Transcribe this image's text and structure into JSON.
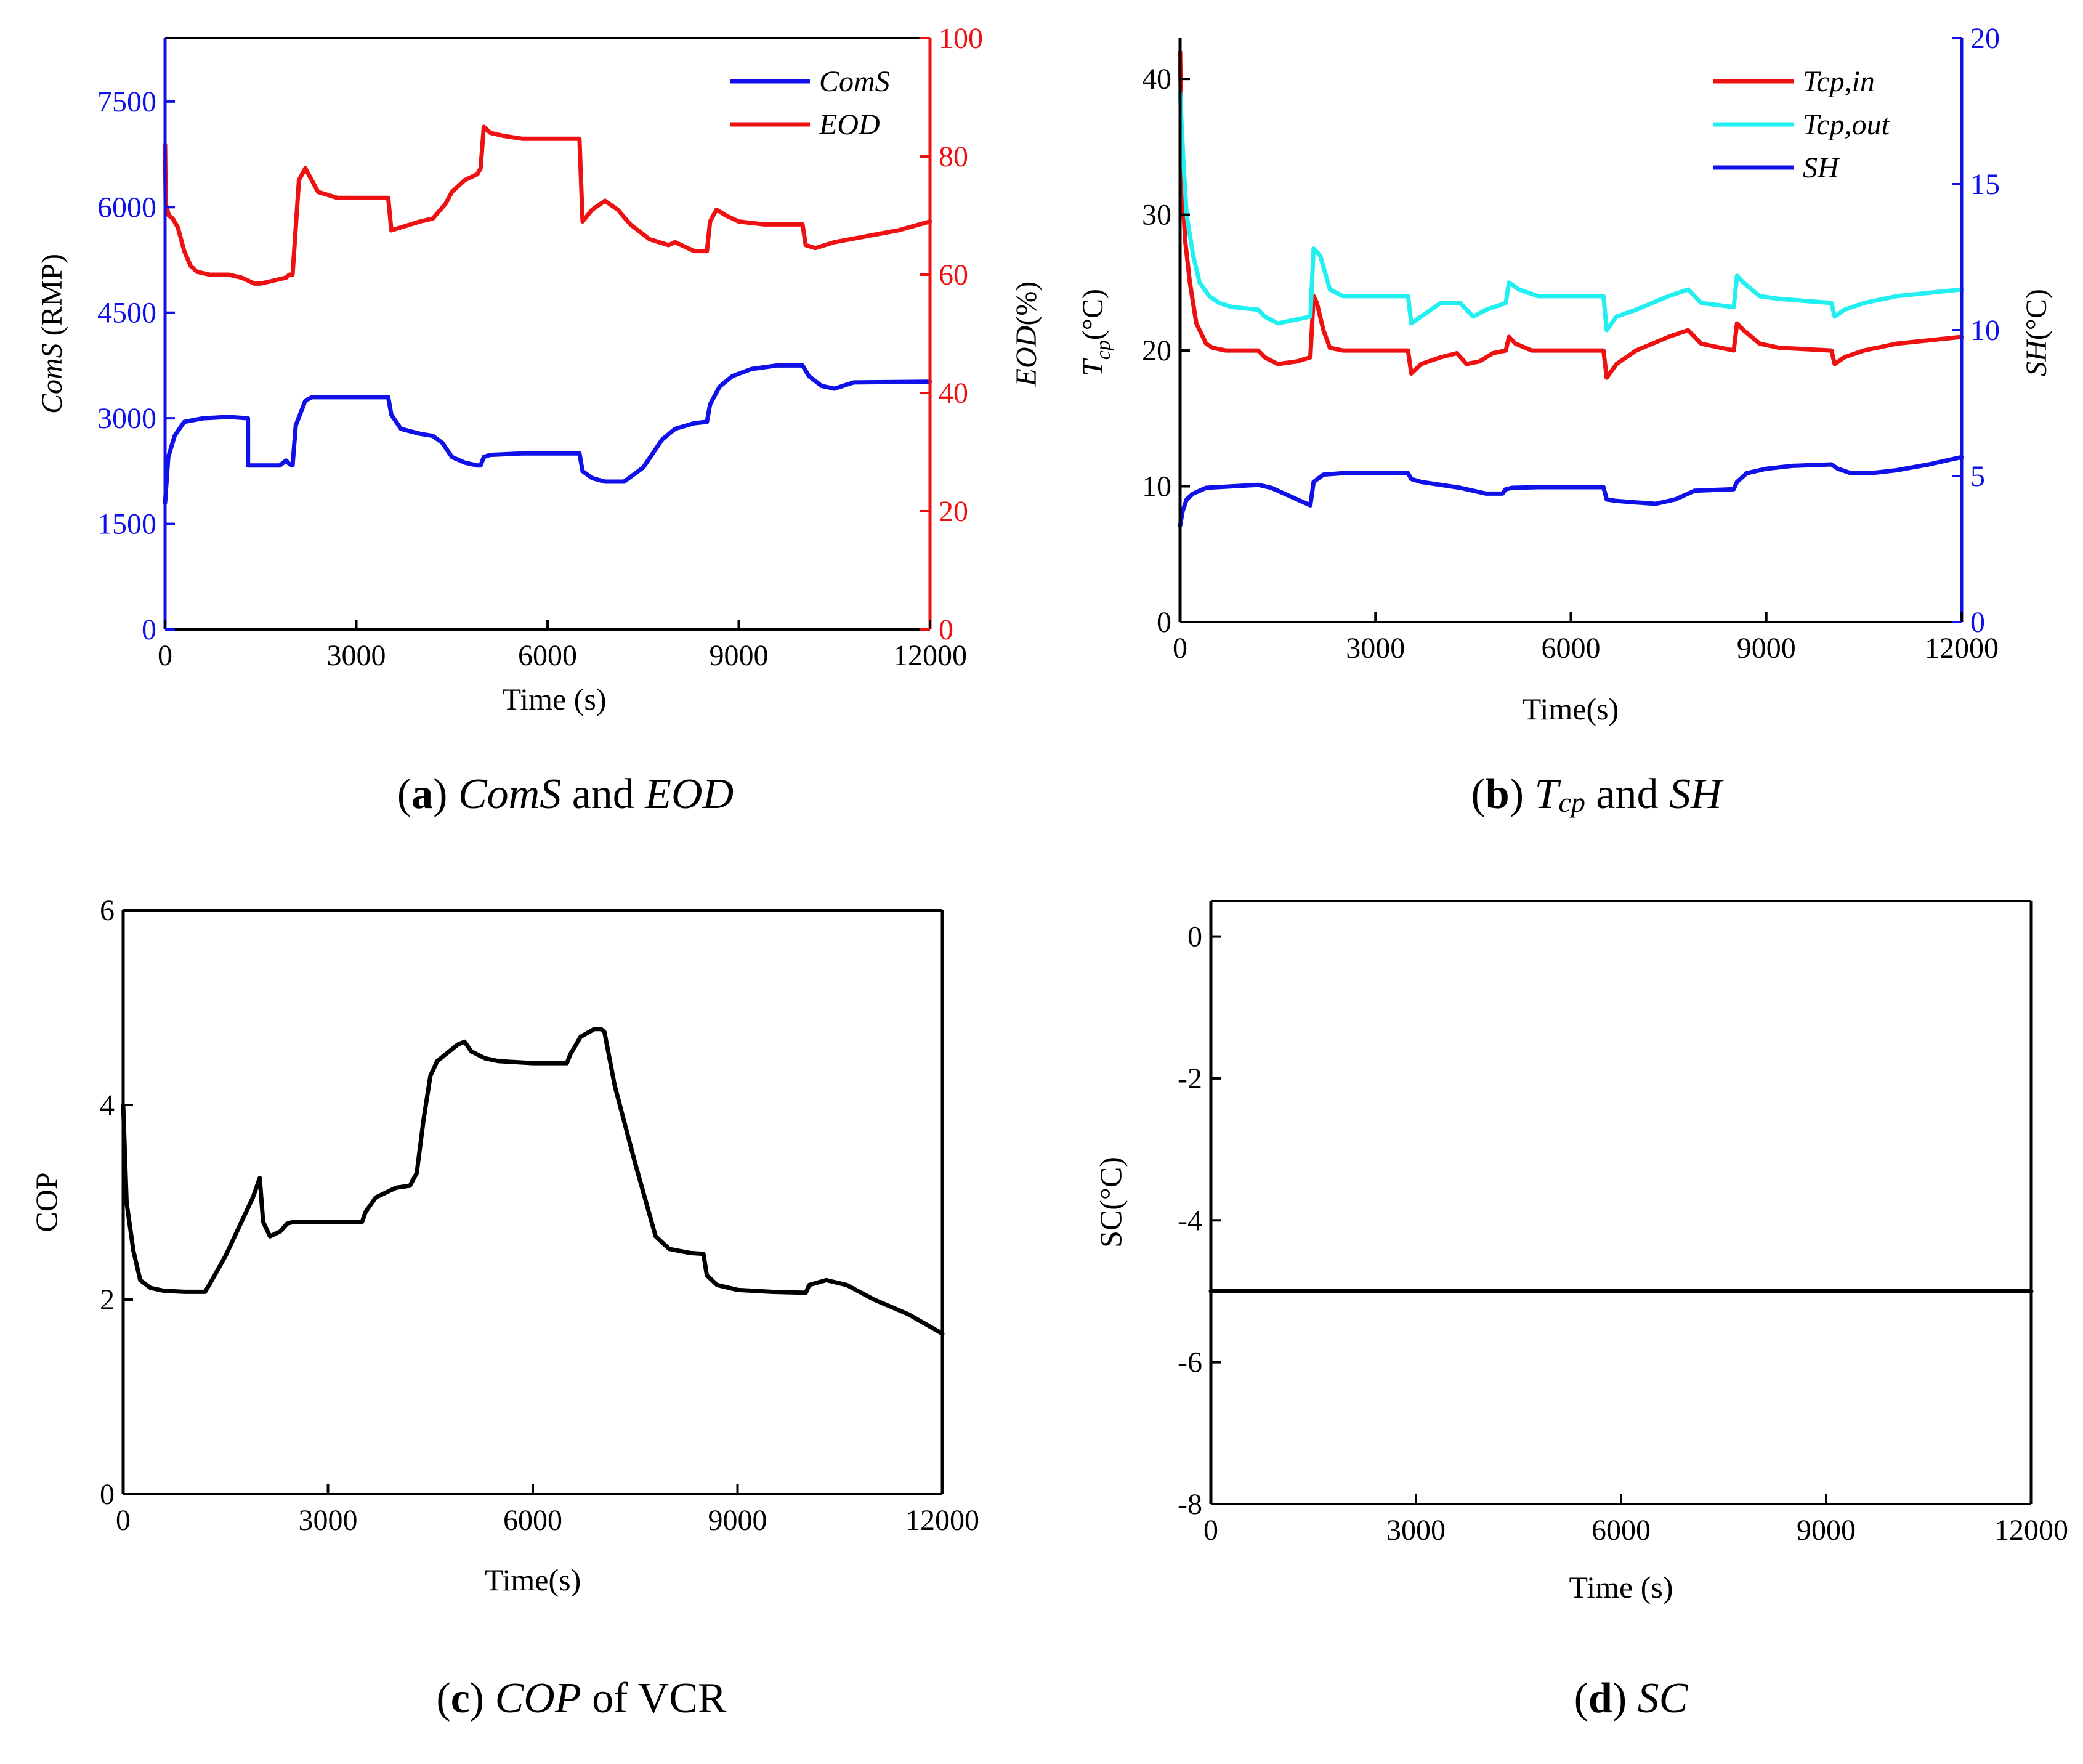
{
  "panels": {
    "a": {
      "caption": {
        "letter": "a",
        "parts": [
          "ComS",
          " and ",
          "EOD"
        ]
      },
      "xlabel": "Time (s)",
      "ylabel_left_italic": "ComS",
      "ylabel_left_unit": " (RMP)",
      "ylabel_right_italic": "EOD",
      "ylabel_right_unit": "(%)"
    },
    "b": {
      "caption": {
        "letter": "b",
        "parts": [
          "T",
          "cp",
          " and ",
          "SH"
        ]
      },
      "xlabel": "Time(s)",
      "ylabel_left_main": "T",
      "ylabel_left_sub": "cp",
      "ylabel_left_unit": "(°C)",
      "ylabel_right_italic": "SH",
      "ylabel_right_unit": "(°C)"
    },
    "c": {
      "caption": {
        "letter": "c",
        "parts": [
          "COP",
          " of VCR"
        ]
      },
      "xlabel": "Time(s)",
      "ylabel": "COP"
    },
    "d": {
      "caption": {
        "letter": "d",
        "parts": [
          "SC"
        ]
      },
      "xlabel": "Time (s)",
      "ylabel": "SC(°C)"
    }
  },
  "colors": {
    "blue": "#1010e8",
    "red": "#ee1111",
    "cyan": "#22f0f0",
    "black": "#000000"
  },
  "chart_data": [
    {
      "id": "a",
      "type": "line",
      "title": "ComS and EOD",
      "xlabel": "Time (s)",
      "ylabel": "ComS (RMP)",
      "y2label": "EOD(%)",
      "xlim": [
        0,
        12000
      ],
      "xticks": [
        0,
        3000,
        6000,
        9000,
        12000
      ],
      "ylim": [
        0,
        8400
      ],
      "yticks": [
        0,
        1500,
        3000,
        4500,
        6000,
        7500
      ],
      "y2lim": [
        0,
        100
      ],
      "y2ticks": [
        0,
        20,
        40,
        60,
        80,
        100
      ],
      "legend": "top-right",
      "series": [
        {
          "name": "ComS",
          "axis": "left",
          "color": "#1010e8",
          "x": [
            0,
            50,
            150,
            300,
            600,
            1000,
            1300,
            1301,
            1800,
            1900,
            1950,
            2000,
            2050,
            2200,
            2300,
            2500,
            3500,
            3550,
            3700,
            4000,
            4200,
            4350,
            4500,
            4700,
            4900,
            4950,
            5000,
            5100,
            5600,
            6500,
            6550,
            6700,
            6900,
            7200,
            7500,
            7800,
            8000,
            8300,
            8500,
            8550,
            8700,
            8900,
            9200,
            9600,
            10000,
            10100,
            10300,
            10500,
            10800,
            12000
          ],
          "y": [
            1800,
            2450,
            2750,
            2950,
            3000,
            3020,
            3000,
            2330,
            2330,
            2400,
            2350,
            2330,
            2900,
            3250,
            3300,
            3300,
            3300,
            3050,
            2850,
            2780,
            2750,
            2650,
            2450,
            2370,
            2330,
            2330,
            2450,
            2480,
            2500,
            2500,
            2250,
            2150,
            2100,
            2100,
            2300,
            2700,
            2850,
            2930,
            2950,
            3200,
            3450,
            3600,
            3700,
            3750,
            3750,
            3600,
            3460,
            3420,
            3510,
            3520
          ]
        },
        {
          "name": "EOD",
          "axis": "right",
          "color": "#ee1111",
          "x": [
            0,
            10,
            60,
            120,
            200,
            300,
            400,
            500,
            700,
            1000,
            1200,
            1300,
            1400,
            1500,
            1700,
            1900,
            1950,
            2000,
            2100,
            2200,
            2400,
            2700,
            3000,
            3300,
            3500,
            3550,
            3700,
            4000,
            4200,
            4400,
            4500,
            4700,
            4900,
            4950,
            5000,
            5100,
            5300,
            5600,
            6000,
            6500,
            6550,
            6700,
            6900,
            7100,
            7300,
            7600,
            7900,
            8000,
            8300,
            8500,
            8550,
            8650,
            8800,
            9000,
            9400,
            9800,
            10000,
            10050,
            10200,
            10500,
            11000,
            11500,
            12000
          ],
          "y": [
            82,
            72,
            70,
            69.5,
            68,
            64,
            61.5,
            60.5,
            60,
            60,
            59.5,
            59,
            58.5,
            58.5,
            59,
            59.5,
            60,
            60,
            76,
            78,
            74,
            73,
            73,
            73,
            73,
            67.5,
            68,
            69,
            69.5,
            72,
            74,
            76,
            77,
            78,
            85,
            84,
            83.5,
            83,
            83,
            83,
            69,
            71,
            72.5,
            71,
            68.5,
            66,
            65,
            65.5,
            64,
            64,
            69,
            71,
            70,
            69,
            68.5,
            68.5,
            68.5,
            65,
            64.5,
            65.5,
            66.5,
            67.5,
            69
          ]
        }
      ]
    },
    {
      "id": "b",
      "type": "line",
      "title": "Tcp and SH",
      "xlabel": "Time(s)",
      "ylabel": "Tcp(°C)",
      "y2label": "SH(°C)",
      "xlim": [
        0,
        12000
      ],
      "xticks": [
        0,
        3000,
        6000,
        9000,
        12000
      ],
      "ylim": [
        0,
        43
      ],
      "yticks": [
        0,
        10,
        20,
        30,
        40
      ],
      "y2lim": [
        0,
        20
      ],
      "y2ticks": [
        0,
        5,
        10,
        15,
        20
      ],
      "legend": "top-right",
      "series": [
        {
          "name": "Tcp,in",
          "axis": "left",
          "color": "#ee1111",
          "x": [
            0,
            30,
            80,
            150,
            250,
            400,
            500,
            700,
            1200,
            1300,
            1500,
            1800,
            2000,
            2050,
            2100,
            2200,
            2300,
            2500,
            3500,
            3550,
            3700,
            4000,
            4250,
            4400,
            4600,
            4800,
            5000,
            5050,
            5150,
            5400,
            6500,
            6550,
            6700,
            7000,
            7500,
            7800,
            7900,
            8000,
            8500,
            8550,
            8650,
            8900,
            9200,
            10000,
            10050,
            10200,
            10500,
            11000,
            12000
          ],
          "y": [
            42,
            32,
            28,
            25,
            22,
            20.5,
            20.2,
            20,
            20,
            19.5,
            19,
            19.2,
            19.5,
            24,
            23.5,
            21.5,
            20.2,
            20,
            20,
            18.3,
            19,
            19.5,
            19.8,
            19,
            19.2,
            19.8,
            20,
            21,
            20.5,
            20,
            20,
            18,
            19,
            20,
            21,
            21.5,
            21,
            20.5,
            20,
            22,
            21.5,
            20.5,
            20.2,
            20,
            19,
            19.5,
            20,
            20.5,
            21
          ]
        },
        {
          "name": "Tcp,out",
          "axis": "left",
          "color": "#22f0f0",
          "x": [
            0,
            50,
            100,
            200,
            300,
            450,
            600,
            800,
            1200,
            1300,
            1500,
            1800,
            2000,
            2050,
            2150,
            2300,
            2500,
            3500,
            3550,
            3700,
            4000,
            4300,
            4500,
            4700,
            5000,
            5050,
            5200,
            5500,
            6500,
            6550,
            6700,
            7000,
            7500,
            7800,
            7900,
            8000,
            8500,
            8550,
            8650,
            8900,
            9200,
            10000,
            10050,
            10200,
            10500,
            11000,
            12000
          ],
          "y": [
            39,
            34,
            30,
            27,
            25,
            24,
            23.5,
            23.2,
            23,
            22.5,
            22,
            22.3,
            22.5,
            27.5,
            27,
            24.5,
            24,
            24,
            22,
            22.5,
            23.5,
            23.5,
            22.5,
            23,
            23.5,
            25,
            24.5,
            24,
            24,
            21.5,
            22.5,
            23,
            24,
            24.5,
            24,
            23.5,
            23.2,
            25.5,
            25,
            24,
            23.8,
            23.5,
            22.5,
            23,
            23.5,
            24,
            24.5
          ]
        },
        {
          "name": "SH",
          "axis": "right",
          "color": "#1010e8",
          "x": [
            0,
            40,
            100,
            200,
            400,
            800,
            1200,
            1400,
            1600,
            1800,
            1950,
            2000,
            2050,
            2200,
            2500,
            3500,
            3550,
            3700,
            4000,
            4300,
            4700,
            4950,
            5000,
            5100,
            5500,
            6500,
            6550,
            6700,
            7000,
            7300,
            7600,
            7900,
            8500,
            8550,
            8700,
            9000,
            9400,
            10000,
            10100,
            10300,
            10600,
            11000,
            11500,
            12000
          ],
          "y": [
            3.3,
            3.8,
            4.2,
            4.4,
            4.6,
            4.65,
            4.7,
            4.6,
            4.4,
            4.2,
            4.05,
            4,
            4.8,
            5.05,
            5.1,
            5.1,
            4.9,
            4.8,
            4.7,
            4.6,
            4.4,
            4.4,
            4.55,
            4.6,
            4.62,
            4.62,
            4.2,
            4.15,
            4.1,
            4.05,
            4.2,
            4.5,
            4.55,
            4.8,
            5.1,
            5.25,
            5.35,
            5.4,
            5.25,
            5.1,
            5.1,
            5.2,
            5.4,
            5.65
          ]
        }
      ]
    },
    {
      "id": "c",
      "type": "line",
      "title": "COP of VCR",
      "xlabel": "Time(s)",
      "ylabel": "COP",
      "xlim": [
        0,
        12000
      ],
      "xticks": [
        0,
        3000,
        6000,
        9000,
        12000
      ],
      "ylim": [
        0,
        6
      ],
      "yticks": [
        0,
        2,
        4,
        6
      ],
      "series": [
        {
          "name": "COP",
          "color": "#000000",
          "x": [
            0,
            50,
            150,
            250,
            400,
            600,
            900,
            1200,
            1300,
            1500,
            1700,
            1900,
            2000,
            2050,
            2150,
            2300,
            2400,
            2500,
            3000,
            3500,
            3550,
            3700,
            4000,
            4200,
            4300,
            4400,
            4500,
            4600,
            4900,
            5000,
            5100,
            5300,
            5500,
            6000,
            6500,
            6550,
            6700,
            6900,
            7000,
            7050,
            7200,
            7500,
            7800,
            8000,
            8300,
            8500,
            8550,
            8700,
            9000,
            9500,
            10000,
            10050,
            10300,
            10600,
            11000,
            11500,
            12000
          ],
          "y": [
            4.0,
            3.0,
            2.5,
            2.2,
            2.12,
            2.09,
            2.08,
            2.08,
            2.2,
            2.45,
            2.75,
            3.05,
            3.25,
            2.8,
            2.65,
            2.7,
            2.78,
            2.8,
            2.8,
            2.8,
            2.9,
            3.05,
            3.15,
            3.17,
            3.3,
            3.85,
            4.3,
            4.45,
            4.62,
            4.65,
            4.55,
            4.48,
            4.45,
            4.43,
            4.43,
            4.52,
            4.7,
            4.78,
            4.78,
            4.75,
            4.2,
            3.4,
            2.65,
            2.52,
            2.48,
            2.47,
            2.25,
            2.15,
            2.1,
            2.08,
            2.07,
            2.15,
            2.2,
            2.15,
            2.0,
            1.85,
            1.65
          ]
        }
      ]
    },
    {
      "id": "d",
      "type": "line",
      "title": "SC",
      "xlabel": "Time (s)",
      "ylabel": "SC(°C)",
      "xlim": [
        0,
        12000
      ],
      "xticks": [
        0,
        3000,
        6000,
        9000,
        12000
      ],
      "ylim": [
        -8,
        0.5
      ],
      "yticks": [
        -8,
        -6,
        -4,
        -2,
        0
      ],
      "series": [
        {
          "name": "SC",
          "color": "#000000",
          "x": [
            0,
            12000
          ],
          "y": [
            -5,
            -5
          ]
        }
      ]
    }
  ]
}
